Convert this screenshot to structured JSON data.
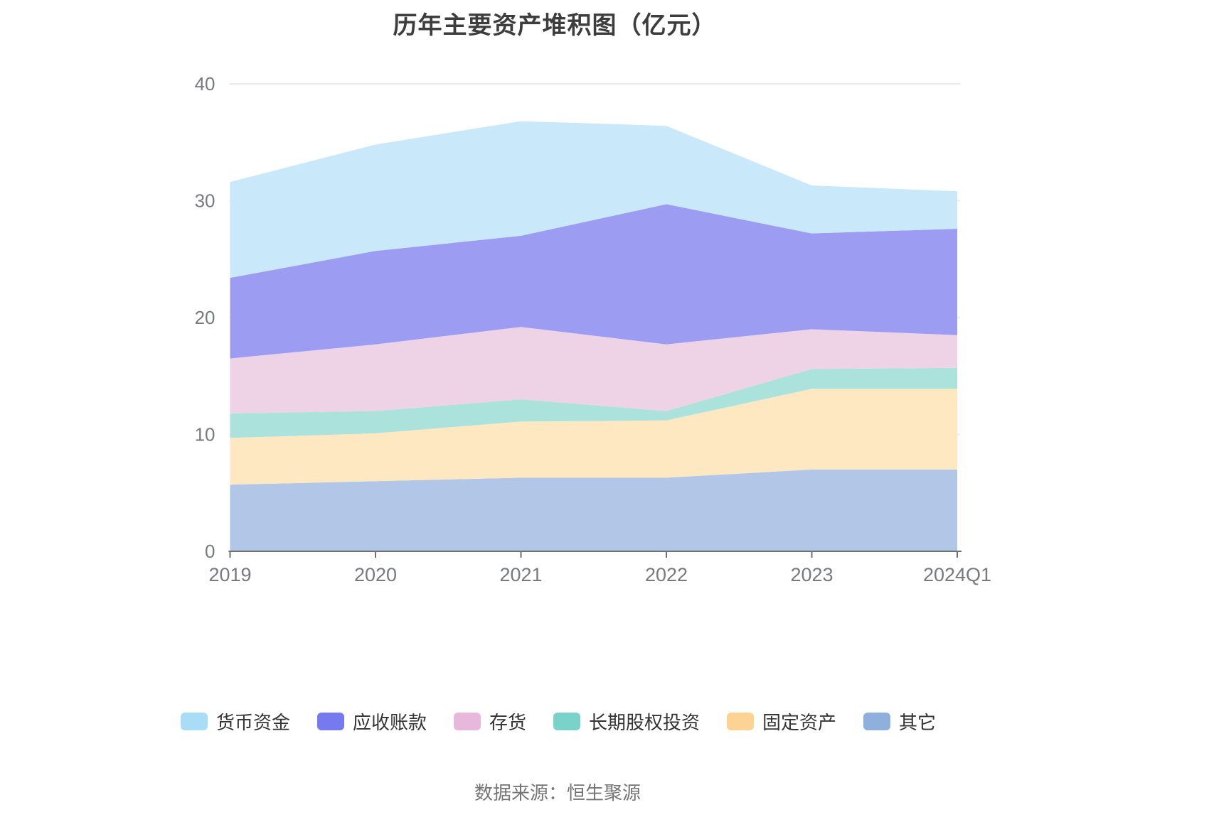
{
  "page": {
    "background": "#ffffff"
  },
  "title": {
    "text": "历年主要资产堆积图（亿元）",
    "color": "#3d3d3d"
  },
  "source_note": {
    "text": "数据来源：恒生聚源",
    "color": "#757575"
  },
  "chart_data": {
    "type": "area",
    "stacked": true,
    "title": "历年主要资产堆积图（亿元）",
    "categories": [
      "2019",
      "2020",
      "2021",
      "2022",
      "2023",
      "2024Q1"
    ],
    "series": [
      {
        "name": "货币资金",
        "values": [
          8.2,
          9.1,
          9.8,
          6.7,
          4.1,
          3.2
        ],
        "color": "#a9dcf7",
        "area_color": "#c9e8fa"
      },
      {
        "name": "应收账款",
        "values": [
          6.9,
          8.0,
          7.8,
          12.0,
          8.2,
          9.1
        ],
        "color": "#7779f0",
        "area_color": "#9b9cf2"
      },
      {
        "name": "存货",
        "values": [
          4.7,
          5.7,
          6.2,
          5.7,
          3.4,
          2.8
        ],
        "color": "#e7b7dc",
        "area_color": "#eed3e6"
      },
      {
        "name": "长期股权投资",
        "values": [
          2.1,
          1.9,
          1.9,
          0.8,
          1.7,
          1.8
        ],
        "color": "#7ad3cb",
        "area_color": "#abe2dc"
      },
      {
        "name": "固定资产",
        "values": [
          4.0,
          4.1,
          4.8,
          4.9,
          6.9,
          6.9
        ],
        "color": "#fcd392",
        "area_color": "#fde8c2"
      },
      {
        "name": "其它",
        "values": [
          5.7,
          6.0,
          6.3,
          6.3,
          7.0,
          7.0
        ],
        "color": "#8fafdc",
        "area_color": "#b2c7e7"
      }
    ],
    "stack_totals": [
      31.6,
      34.8,
      36.8,
      36.4,
      31.3,
      30.8
    ],
    "stack_order_note": "rendered bottom-to-top in reverse of series list",
    "xlabel": "",
    "ylabel": "",
    "ylim": [
      0,
      40
    ],
    "yticks": [
      0,
      10,
      20,
      30,
      40
    ],
    "grid": true,
    "legend_position": "bottom",
    "axis_color": "#6E7079",
    "grid_color": "#e4eaf4",
    "tick_label_color": "#77797f"
  }
}
